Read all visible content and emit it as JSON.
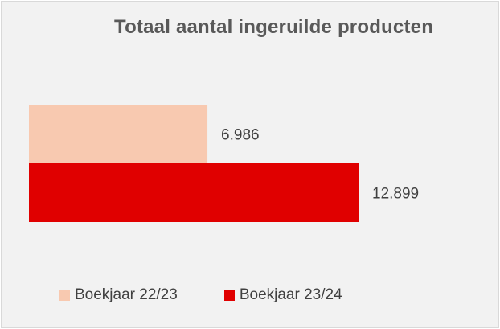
{
  "chart_data": {
    "type": "bar",
    "orientation": "horizontal",
    "title": "Totaal aantal ingeruilde producten",
    "xlabel": "",
    "ylabel": "",
    "grid": false,
    "legend_position": "bottom",
    "xlim": [
      0,
      14000
    ],
    "series": [
      {
        "name": "Boekjaar 22/23",
        "value": 6986,
        "label": "6.986",
        "color": "#f8c9b0"
      },
      {
        "name": "Boekjaar 23/24",
        "value": 12899,
        "label": "12.899",
        "color": "#e00000"
      }
    ]
  }
}
